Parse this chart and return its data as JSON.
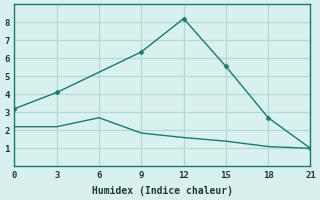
{
  "xlabel": "Humidex (Indice chaleur)",
  "background_color": "#d8f0ee",
  "grid_color": "#b0d8d4",
  "line_color": "#1a7a6e",
  "series1_x": [
    0,
    3,
    9,
    12,
    15,
    18,
    21
  ],
  "series1_y": [
    3.2,
    4.1,
    6.35,
    8.2,
    5.55,
    2.7,
    1.0
  ],
  "series2_x": [
    0,
    3,
    6,
    9,
    12,
    15,
    18,
    21
  ],
  "series2_y": [
    2.2,
    2.2,
    2.7,
    1.85,
    1.6,
    1.4,
    1.1,
    1.0
  ],
  "xlim": [
    0,
    21
  ],
  "ylim": [
    0,
    9
  ],
  "xticks": [
    0,
    3,
    6,
    9,
    12,
    15,
    18,
    21
  ],
  "yticks": [
    1,
    2,
    3,
    4,
    5,
    6,
    7,
    8
  ]
}
